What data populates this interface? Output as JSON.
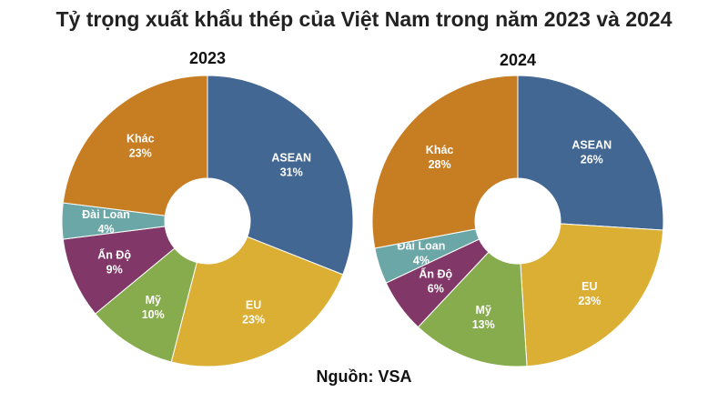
{
  "title": "Tỷ trọng xuất khẩu thép của Việt Nam trong năm 2023 và 2024",
  "source": "Nguồn: VSA",
  "colors": {
    "ASEAN": "#436793",
    "EU": "#dbaf33",
    "Mỹ": "#86ac4d",
    "Ấn Độ": "#813868",
    "Đài Loan": "#6aa7a6",
    "Khác": "#c77d22"
  },
  "chart_data": [
    {
      "type": "pie",
      "title": "2023",
      "categories": [
        "ASEAN",
        "EU",
        "Mỹ",
        "Ấn Độ",
        "Đài Loan",
        "Khác"
      ],
      "values": [
        31,
        23,
        10,
        9,
        4,
        23
      ],
      "value_labels": [
        "31%",
        "23%",
        "10%",
        "9%",
        "4%",
        "23%"
      ]
    },
    {
      "type": "pie",
      "title": "2024",
      "categories": [
        "ASEAN",
        "EU",
        "Mỹ",
        "Ấn Độ",
        "Đài Loan",
        "Khác"
      ],
      "values": [
        26,
        23,
        13,
        6,
        4,
        28
      ],
      "value_labels": [
        "26%",
        "23%",
        "13%",
        "6%",
        "4%",
        "28%"
      ]
    }
  ]
}
